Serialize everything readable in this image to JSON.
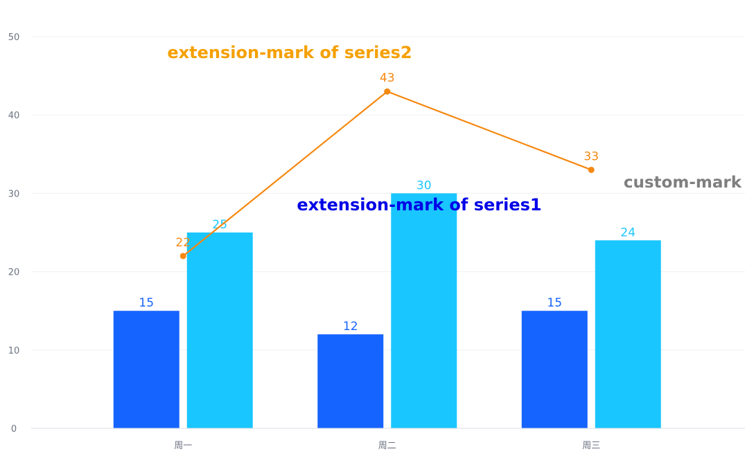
{
  "chart_data": {
    "type": "bar",
    "categories": [
      "周一",
      "周二",
      "周三"
    ],
    "series": [
      {
        "kind": "bar",
        "values": [
          15,
          12,
          15
        ],
        "color": "#1664ff"
      },
      {
        "kind": "bar",
        "values": [
          25,
          30,
          24
        ],
        "color": "#1ac6ff"
      },
      {
        "kind": "line",
        "values": [
          22,
          43,
          33
        ],
        "color": "#f5880f"
      }
    ],
    "ylim": [
      0,
      50
    ],
    "yticks": [
      0,
      10,
      20,
      30,
      40,
      50
    ],
    "grid": true,
    "legend": "none",
    "annotations": [
      {
        "id": "series2",
        "text": "extension-mark of series2",
        "color": "#f5a000"
      },
      {
        "id": "series1",
        "text": "extension-mark of series1",
        "color": "#0000e6"
      },
      {
        "id": "custom",
        "text": "custom-mark",
        "color": "#7f7f7f"
      }
    ]
  }
}
